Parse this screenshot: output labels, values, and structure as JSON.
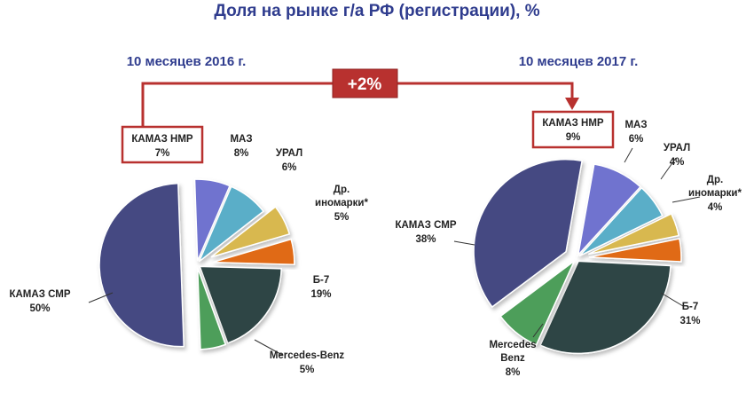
{
  "title": "Доля на рынке г/а РФ (регистрации), %",
  "delta_label": "+2%",
  "colors": {
    "КАМАЗ НМР": "#6f73cf",
    "МАЗ": "#5aaec8",
    "УРАЛ": "#d8b84f",
    "Др. иномарки*": "#e06a12",
    "Б-7": "#2f4545",
    "Mercedes-Benz": "#4e9e5a",
    "КАМАЗ СМР": "#444a82",
    "highlight": "#b8312f",
    "title": "#2f3c8e"
  },
  "chart_data": [
    {
      "type": "pie",
      "title": "10 месяцев 2016 г.",
      "slices": [
        {
          "label": "КАМАЗ НМР",
          "value": 7,
          "value_label": "7%",
          "highlighted": true
        },
        {
          "label": "МАЗ",
          "value": 8,
          "value_label": "8%"
        },
        {
          "label": "УРАЛ",
          "value": 6,
          "value_label": "6%",
          "exploded": true
        },
        {
          "label": "Др. иномарки*",
          "label_lines": [
            "Др.",
            "иномарки*"
          ],
          "value": 5,
          "value_label": "5%",
          "exploded": true
        },
        {
          "label": "Б-7",
          "value": 19,
          "value_label": "19%"
        },
        {
          "label": "Mercedes-Benz",
          "value": 5,
          "value_label": "5%"
        },
        {
          "label": "КАМАЗ СМР",
          "value": 50,
          "value_label": "50%",
          "exploded": true
        }
      ]
    },
    {
      "type": "pie",
      "title": "10 месяцев 2017 г.",
      "slices": [
        {
          "label": "КАМАЗ НМР",
          "value": 9,
          "value_label": "9%",
          "highlighted": true
        },
        {
          "label": "МАЗ",
          "value": 6,
          "value_label": "6%"
        },
        {
          "label": "УРАЛ",
          "value": 4,
          "value_label": "4%",
          "exploded": true
        },
        {
          "label": "Др. иномарки*",
          "label_lines": [
            "Др.",
            "иномарки*"
          ],
          "value": 4,
          "value_label": "4%",
          "exploded": true
        },
        {
          "label": "Б-7",
          "value": 31,
          "value_label": "31%"
        },
        {
          "label": "Mercedes-Benz",
          "label_lines": [
            "Mercedes",
            "Benz"
          ],
          "value": 8,
          "value_label": "8%"
        },
        {
          "label": "КАМАЗ СМР",
          "value": 38,
          "value_label": "38%",
          "exploded": true
        }
      ]
    }
  ]
}
